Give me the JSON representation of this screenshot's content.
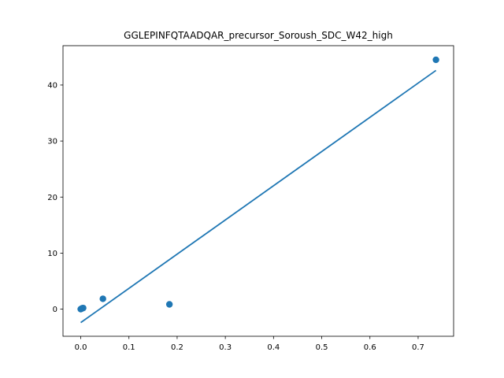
{
  "chart_data": {
    "type": "scatter",
    "title": "GGLEPINFQTAADQAR_precursor_Soroush_SDC_W42_high",
    "xlabel": "",
    "ylabel": "",
    "xlim": [
      -0.0368,
      0.7736
    ],
    "ylim": [
      -4.84,
      47.02
    ],
    "x_ticks": [
      0.0,
      0.1,
      0.2,
      0.3,
      0.4,
      0.5,
      0.6,
      0.7
    ],
    "x_tick_labels": [
      "0.0",
      "0.1",
      "0.2",
      "0.3",
      "0.4",
      "0.5",
      "0.6",
      "0.7"
    ],
    "y_ticks": [
      0,
      10,
      20,
      30,
      40
    ],
    "y_tick_labels": [
      "0",
      "10",
      "20",
      "30",
      "40"
    ],
    "grid": false,
    "color": "#1f77b4",
    "series": [
      {
        "type": "scatter",
        "points": [
          [
            0.0,
            0.0
          ],
          [
            0.001,
            0.05
          ],
          [
            0.003,
            0.15
          ],
          [
            0.005,
            0.2
          ],
          [
            0.046,
            1.85
          ],
          [
            0.184,
            0.85
          ],
          [
            0.737,
            44.5
          ]
        ]
      },
      {
        "type": "line",
        "points": [
          [
            0.0,
            -2.4
          ],
          [
            0.737,
            42.6
          ]
        ]
      }
    ]
  }
}
